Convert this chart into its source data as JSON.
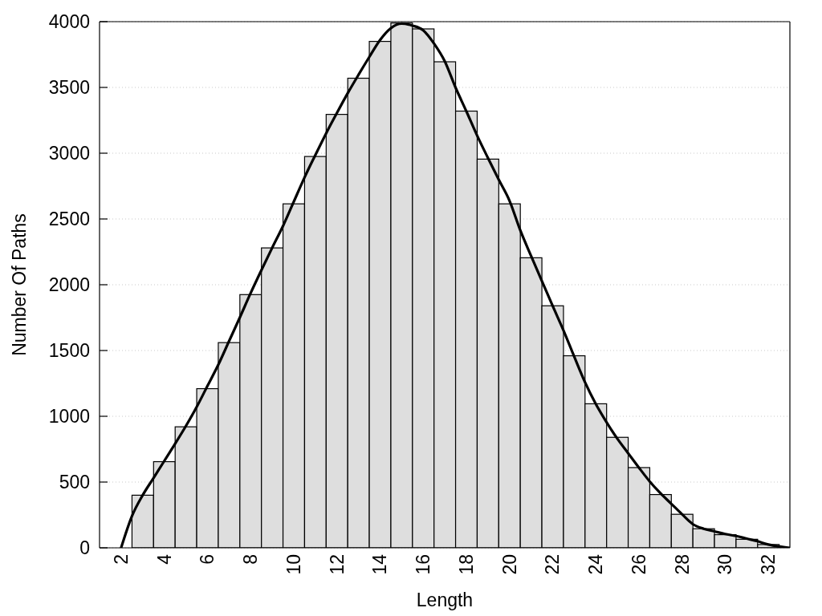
{
  "chart_data": {
    "type": "histogram",
    "xlabel": "Length",
    "ylabel": "Number Of Paths",
    "bins": [
      2.5,
      3.5,
      4.5,
      5.5,
      6.5,
      7.5,
      8.5,
      9.5,
      10.5,
      11.5,
      12.5,
      13.5,
      14.5,
      15.5,
      16.5,
      17.5,
      18.5,
      19.5,
      20.5,
      21.5,
      22.5,
      23.5,
      24.5,
      25.5,
      26.5,
      27.5,
      28.5,
      29.5,
      30.5,
      31.5,
      32.5
    ],
    "series": [
      {
        "color": "#dedede",
        "values": [
          400,
          655,
          920,
          1210,
          1560,
          1925,
          2280,
          2615,
          2975,
          3295,
          3570,
          3850,
          3990,
          3945,
          3695,
          3320,
          2955,
          2615,
          2205,
          1840,
          1460,
          1095,
          840,
          610,
          405,
          255,
          145,
          100,
          65,
          25
        ]
      },
      {
        "type": "line",
        "color": "#000000",
        "x": [
          2,
          2.5,
          3,
          3.5,
          4,
          4.5,
          5,
          5.5,
          6,
          6.5,
          7,
          7.5,
          8,
          8.5,
          9,
          9.5,
          10,
          10.5,
          11,
          11.5,
          12,
          12.5,
          13,
          13.5,
          14,
          14.5,
          15,
          15.5,
          16,
          16.5,
          17,
          17.5,
          18,
          18.5,
          19,
          19.5,
          20,
          20.5,
          21,
          21.5,
          22,
          22.5,
          23,
          23.5,
          24,
          24.5,
          25,
          25.5,
          26,
          26.5,
          27,
          27.5,
          28,
          28.5,
          29,
          29.5,
          30,
          30.5,
          31,
          31.5,
          32,
          32.5,
          33
        ],
        "values": [
          0,
          240,
          400,
          530,
          660,
          790,
          925,
          1070,
          1230,
          1390,
          1570,
          1750,
          1935,
          2110,
          2280,
          2445,
          2630,
          2815,
          2985,
          3150,
          3305,
          3455,
          3595,
          3730,
          3860,
          3950,
          3985,
          3970,
          3935,
          3835,
          3700,
          3500,
          3320,
          3135,
          2965,
          2800,
          2640,
          2415,
          2220,
          2030,
          1840,
          1655,
          1455,
          1260,
          1095,
          955,
          830,
          720,
          610,
          505,
          415,
          335,
          255,
          180,
          145,
          125,
          105,
          90,
          70,
          50,
          25,
          10,
          0
        ]
      }
    ],
    "xlim": [
      1,
      33
    ],
    "xticks": [
      2,
      4,
      6,
      8,
      10,
      12,
      14,
      16,
      18,
      20,
      22,
      24,
      26,
      28,
      30,
      32
    ],
    "ylim": [
      0,
      4000
    ],
    "yticks": [
      0,
      500,
      1000,
      1500,
      2000,
      2500,
      3000,
      3500,
      4000
    ],
    "grid": "y"
  }
}
